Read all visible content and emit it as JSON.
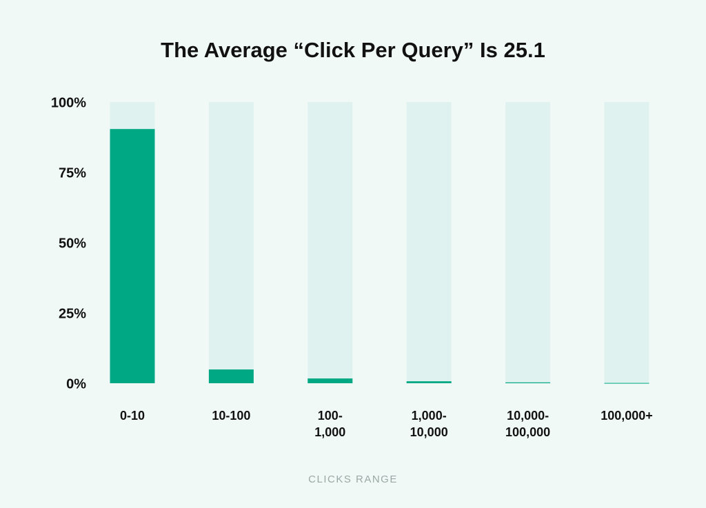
{
  "chart_data": {
    "type": "bar",
    "title": "The Average “Click Per Query” Is 25.1",
    "x_label": "CLICKS RANGE",
    "categories": [
      "0-10",
      "10-100",
      "100-\n1,000",
      "1,000-\n10,000",
      "10,000-\n100,000",
      "100,000+"
    ],
    "values": [
      90.4,
      4.9,
      1.7,
      0.7,
      0.3,
      0.1
    ],
    "color": "#00a884",
    "track_color": "#dff2ef",
    "ylim": [
      0,
      100
    ],
    "yticks": [
      {
        "value": 0,
        "label": "0%"
      },
      {
        "value": 25,
        "label": "25%"
      },
      {
        "value": 50,
        "label": "50%"
      },
      {
        "value": 75,
        "label": "75%"
      },
      {
        "value": 100,
        "label": "100%"
      }
    ],
    "grid": false
  }
}
